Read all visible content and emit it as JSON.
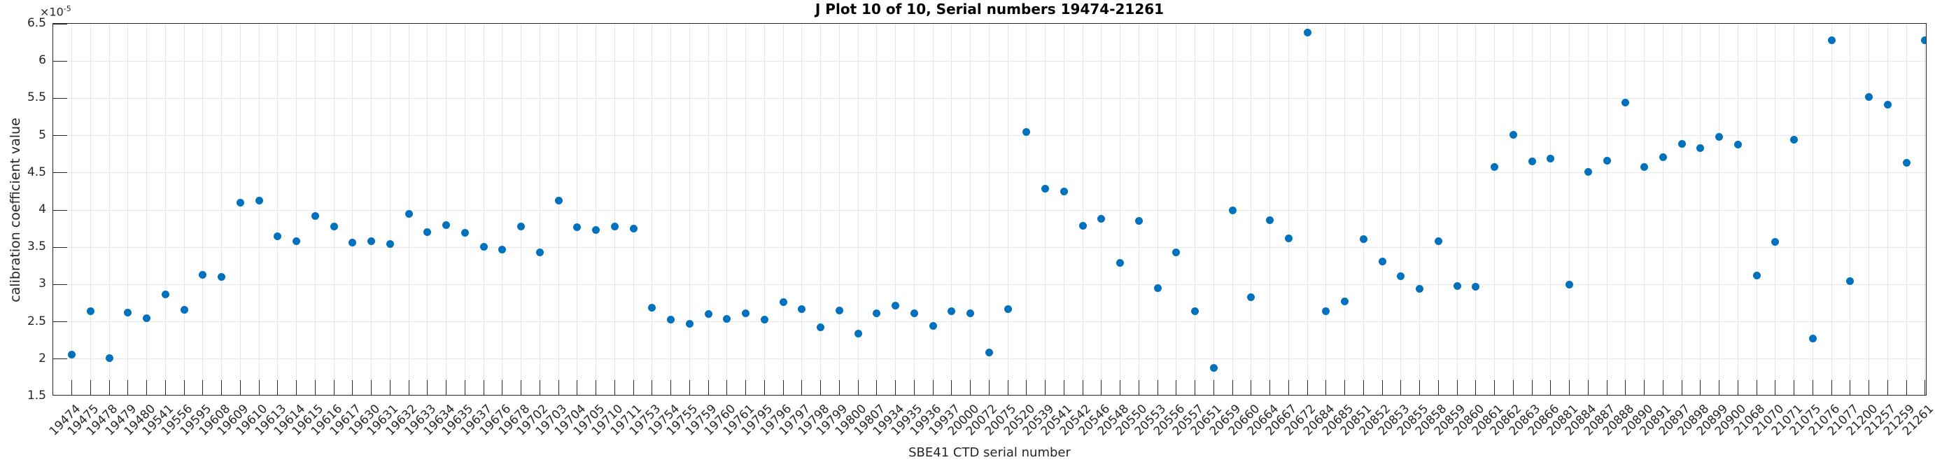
{
  "title": "J Plot 10 of 10, Serial numbers 19474-21261",
  "axes": {
    "x_label": "SBE41 CTD serial number",
    "y_label": "calibration coefficient value",
    "offset_base": "×10",
    "offset_exp": "-5",
    "y_tick_labels": [
      "1.5",
      "2",
      "2.5",
      "3",
      "3.5",
      "4",
      "4.5",
      "5",
      "5.5",
      "6",
      "6.5"
    ]
  },
  "colors": {
    "marker": "#0072BD",
    "grid": "#e6e6e6",
    "axis": "#262626",
    "background": "#ffffff"
  },
  "chart_data": {
    "type": "scatter",
    "title": "J Plot 10 of 10, Serial numbers 19474-21261",
    "xlabel": "SBE41 CTD serial number",
    "ylabel": "calibration coefficient value",
    "value_scale": 1e-05,
    "ylim": [
      1.5,
      6.5
    ],
    "y_tick_step": 0.5,
    "grid": true,
    "legend": "none",
    "categories": [
      "19474",
      "19475",
      "19478",
      "19479",
      "19480",
      "19541",
      "19556",
      "19595",
      "19608",
      "19609",
      "19610",
      "19613",
      "19614",
      "19615",
      "19616",
      "19617",
      "19630",
      "19631",
      "19632",
      "19633",
      "19634",
      "19635",
      "19637",
      "19676",
      "19678",
      "19702",
      "19703",
      "19704",
      "19705",
      "19710",
      "19711",
      "19753",
      "19754",
      "19755",
      "19759",
      "19760",
      "19761",
      "19795",
      "19796",
      "19797",
      "19798",
      "19799",
      "19800",
      "19807",
      "19934",
      "19935",
      "19936",
      "19937",
      "20000",
      "20072",
      "20075",
      "20520",
      "20539",
      "20541",
      "20542",
      "20546",
      "20548",
      "20550",
      "20553",
      "20556",
      "20557",
      "20651",
      "20659",
      "20660",
      "20664",
      "20667",
      "20672",
      "20684",
      "20685",
      "20851",
      "20852",
      "20853",
      "20855",
      "20858",
      "20859",
      "20860",
      "20861",
      "20862",
      "20863",
      "20866",
      "20881",
      "20884",
      "20887",
      "20888",
      "20890",
      "20891",
      "20897",
      "20898",
      "20899",
      "20900",
      "21068",
      "21070",
      "21071",
      "21075",
      "21076",
      "21077",
      "21200",
      "21257",
      "21259",
      "21261"
    ],
    "values": [
      2.06,
      2.64,
      2.01,
      2.62,
      2.55,
      2.87,
      2.66,
      3.13,
      3.1,
      4.1,
      4.13,
      3.65,
      3.58,
      3.92,
      3.78,
      3.56,
      3.58,
      3.54,
      3.95,
      3.7,
      3.8,
      3.69,
      3.51,
      3.47,
      3.78,
      3.43,
      4.13,
      3.77,
      3.73,
      3.78,
      3.75,
      2.69,
      2.53,
      2.47,
      2.6,
      2.54,
      2.61,
      2.53,
      2.76,
      2.67,
      2.43,
      2.65,
      2.34,
      2.61,
      2.72,
      2.61,
      2.44,
      2.64,
      2.61,
      2.09,
      2.67,
      5.05,
      4.29,
      4.25,
      3.79,
      3.88,
      3.29,
      3.85,
      2.95,
      3.43,
      2.64,
      1.88,
      4.0,
      2.83,
      3.86,
      3.62,
      6.38,
      2.64,
      2.77,
      3.61,
      3.31,
      3.11,
      2.94,
      3.58,
      2.98,
      2.97,
      4.58,
      5.01,
      4.65,
      4.69,
      3.0,
      4.51,
      4.66,
      5.44,
      4.58,
      4.71,
      4.89,
      4.83,
      4.98,
      4.88,
      3.12,
      3.57,
      4.94,
      2.28,
      6.28,
      3.05,
      5.52,
      5.41,
      4.63,
      6.28
    ]
  }
}
